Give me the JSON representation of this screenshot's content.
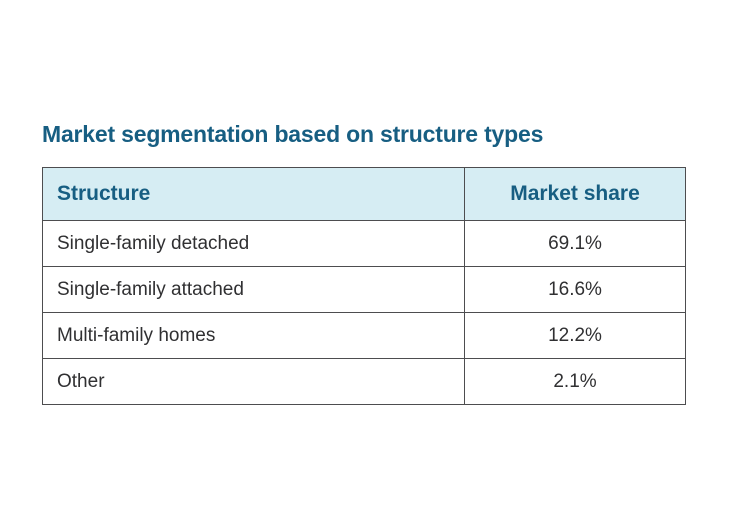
{
  "title": "Market segmentation based on structure types",
  "table": {
    "columns": {
      "structure": "Structure",
      "share": "Market share"
    },
    "rows": [
      {
        "structure": "Single-family detached",
        "share": "69.1%"
      },
      {
        "structure": "Single-family attached",
        "share": "16.6%"
      },
      {
        "structure": "Multi-family homes",
        "share": "12.2%"
      },
      {
        "structure": "Other",
        "share": "2.1%"
      }
    ]
  },
  "colors": {
    "title_text": "#175e82",
    "header_bg": "#d6edf3",
    "header_text": "#175e82",
    "border": "#4d4d4f",
    "body_text": "#303032",
    "background": "#ffffff"
  },
  "chart_data": {
    "type": "table",
    "title": "Market segmentation based on structure types",
    "columns": [
      "Structure",
      "Market share"
    ],
    "categories": [
      "Single-family detached",
      "Single-family attached",
      "Multi-family homes",
      "Other"
    ],
    "values": [
      69.1,
      16.6,
      12.2,
      2.1
    ],
    "unit": "%"
  }
}
